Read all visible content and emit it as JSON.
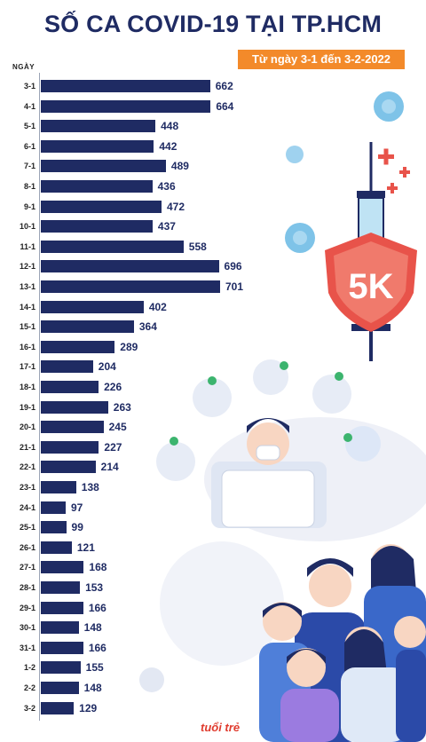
{
  "header": {
    "title": "SỐ CA COVID-19 TẠI TP.HCM",
    "subtitle": "Từ ngày 3-1 đến 3-2-2022"
  },
  "chart_data": {
    "type": "bar",
    "orientation": "horizontal",
    "title": "SỐ CA COVID-19 TẠI TP.HCM",
    "subtitle": "Từ ngày 3-1 đến 3-2-2022",
    "ylabel": "NGÀY",
    "xlabel": "",
    "categories": [
      "3-1",
      "4-1",
      "5-1",
      "6-1",
      "7-1",
      "8-1",
      "9-1",
      "10-1",
      "11-1",
      "12-1",
      "13-1",
      "14-1",
      "15-1",
      "16-1",
      "17-1",
      "18-1",
      "19-1",
      "20-1",
      "21-1",
      "22-1",
      "23-1",
      "24-1",
      "25-1",
      "26-1",
      "27-1",
      "28-1",
      "29-1",
      "30-1",
      "31-1",
      "1-2",
      "2-2",
      "3-2"
    ],
    "values": [
      662,
      664,
      448,
      442,
      489,
      436,
      472,
      437,
      558,
      696,
      701,
      402,
      364,
      289,
      204,
      226,
      263,
      245,
      227,
      214,
      138,
      97,
      99,
      121,
      168,
      153,
      166,
      148,
      166,
      155,
      148,
      129
    ],
    "xlim": [
      0,
      701
    ],
    "bar_color": "#1f2b63",
    "title_color": "#1f2b63",
    "subtitle_bg": "#f38a2a"
  },
  "illustration": {
    "shield_text": "5K",
    "logo_text": "tuổi trẻ"
  }
}
